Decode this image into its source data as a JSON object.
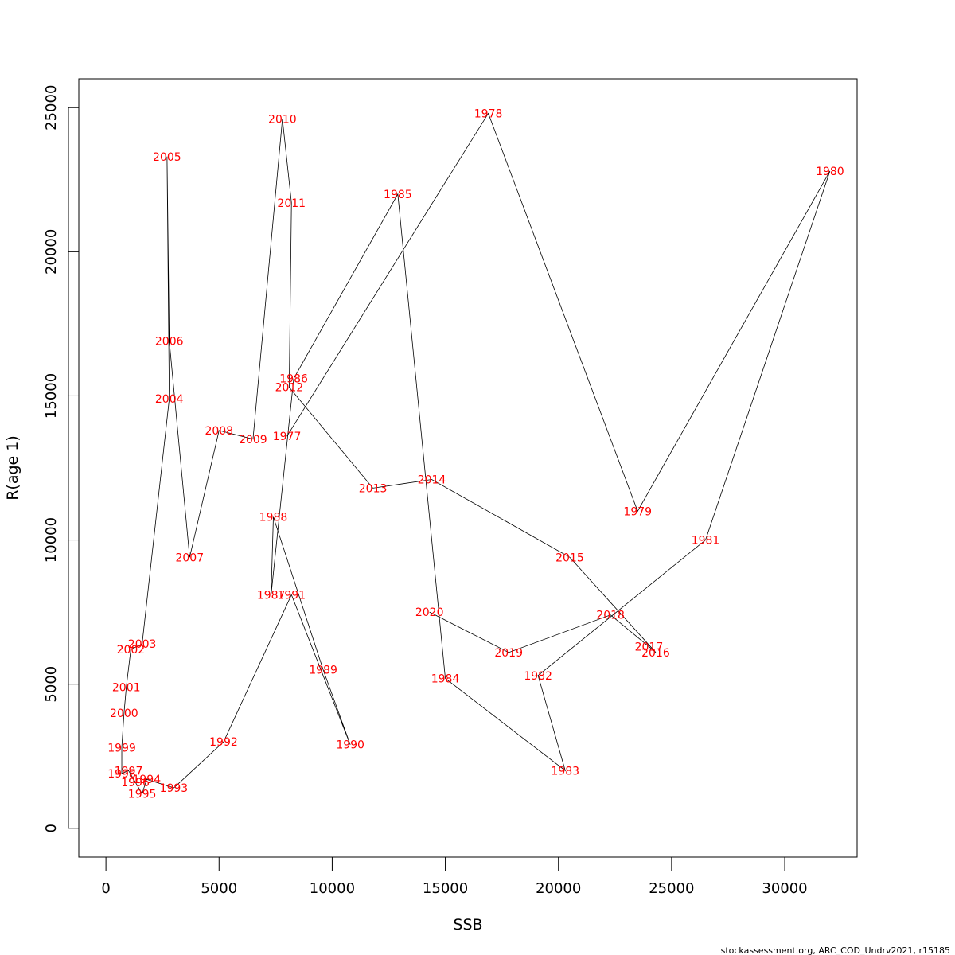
{
  "chart_data": {
    "type": "line",
    "title": "",
    "xlabel": "SSB",
    "ylabel": "R(age 1)",
    "xlim": [
      -1200,
      33200
    ],
    "ylim": [
      -1000,
      26000
    ],
    "x_ticks": [
      0,
      5000,
      10000,
      15000,
      20000,
      25000,
      30000
    ],
    "y_ticks": [
      0,
      5000,
      10000,
      15000,
      20000,
      25000
    ],
    "grid": false,
    "line_color": "#000000",
    "label_color": "#ff0000",
    "points": [
      {
        "year": "1977",
        "x": 8000,
        "y": 13600
      },
      {
        "year": "1978",
        "x": 16900,
        "y": 24800
      },
      {
        "year": "1979",
        "x": 23500,
        "y": 11000
      },
      {
        "year": "1980",
        "x": 32000,
        "y": 22800
      },
      {
        "year": "1981",
        "x": 26500,
        "y": 10000
      },
      {
        "year": "1982",
        "x": 19100,
        "y": 5300
      },
      {
        "year": "1983",
        "x": 20300,
        "y": 2000
      },
      {
        "year": "1984",
        "x": 15000,
        "y": 5200
      },
      {
        "year": "1985",
        "x": 12900,
        "y": 22000
      },
      {
        "year": "1986",
        "x": 8300,
        "y": 15600
      },
      {
        "year": "1987",
        "x": 7300,
        "y": 8100
      },
      {
        "year": "1988",
        "x": 7400,
        "y": 10800
      },
      {
        "year": "1989",
        "x": 9600,
        "y": 5500
      },
      {
        "year": "1990",
        "x": 10800,
        "y": 2900
      },
      {
        "year": "1991",
        "x": 8200,
        "y": 8100
      },
      {
        "year": "1992",
        "x": 5200,
        "y": 3000
      },
      {
        "year": "1993",
        "x": 3000,
        "y": 1400
      },
      {
        "year": "1994",
        "x": 1800,
        "y": 1700
      },
      {
        "year": "1995",
        "x": 1600,
        "y": 1200
      },
      {
        "year": "1996",
        "x": 1300,
        "y": 1600
      },
      {
        "year": "1997",
        "x": 1000,
        "y": 2000
      },
      {
        "year": "1998",
        "x": 700,
        "y": 1900
      },
      {
        "year": "1999",
        "x": 700,
        "y": 2800
      },
      {
        "year": "2000",
        "x": 800,
        "y": 4000
      },
      {
        "year": "2001",
        "x": 900,
        "y": 4900
      },
      {
        "year": "2002",
        "x": 1100,
        "y": 6200
      },
      {
        "year": "2003",
        "x": 1600,
        "y": 6400
      },
      {
        "year": "2004",
        "x": 2800,
        "y": 14900
      },
      {
        "year": "2005",
        "x": 2700,
        "y": 23300
      },
      {
        "year": "2006",
        "x": 2800,
        "y": 16900
      },
      {
        "year": "2007",
        "x": 3700,
        "y": 9400
      },
      {
        "year": "2008",
        "x": 5000,
        "y": 13800
      },
      {
        "year": "2009",
        "x": 6500,
        "y": 13500
      },
      {
        "year": "2010",
        "x": 7800,
        "y": 24600
      },
      {
        "year": "2011",
        "x": 8200,
        "y": 21700
      },
      {
        "year": "2012",
        "x": 8100,
        "y": 15300
      },
      {
        "year": "2013",
        "x": 11800,
        "y": 11800
      },
      {
        "year": "2014",
        "x": 14400,
        "y": 12100
      },
      {
        "year": "2015",
        "x": 20500,
        "y": 9400
      },
      {
        "year": "2016",
        "x": 24300,
        "y": 6100
      },
      {
        "year": "2017",
        "x": 24000,
        "y": 6300
      },
      {
        "year": "2018",
        "x": 22300,
        "y": 7400
      },
      {
        "year": "2019",
        "x": 17800,
        "y": 6100
      },
      {
        "year": "2020",
        "x": 14300,
        "y": 7500
      }
    ]
  },
  "caption": "stockassessment.org, ARC_COD_Undrv2021, r15185"
}
